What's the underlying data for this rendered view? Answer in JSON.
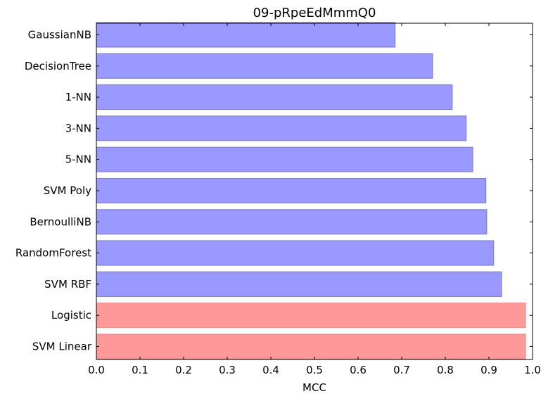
{
  "chart_data": {
    "type": "bar",
    "orientation": "horizontal",
    "title": "09-pRpeEdMmmQ0",
    "xlabel": "MCC",
    "ylabel": "",
    "xlim": [
      0.0,
      1.0
    ],
    "xticks": [
      "0.0",
      "0.1",
      "0.2",
      "0.3",
      "0.4",
      "0.5",
      "0.6",
      "0.7",
      "0.8",
      "0.9",
      "1.0"
    ],
    "categories": [
      "GaussianNB",
      "DecisionTree",
      "1-NN",
      "3-NN",
      "5-NN",
      "SVM Poly",
      "BernoulliNB",
      "RandomForest",
      "SVM RBF",
      "Logistic",
      "SVM Linear"
    ],
    "values": [
      0.685,
      0.771,
      0.816,
      0.848,
      0.863,
      0.893,
      0.895,
      0.911,
      0.929,
      0.984,
      0.984
    ],
    "highlighted": [
      false,
      false,
      false,
      false,
      false,
      false,
      false,
      false,
      false,
      true,
      true
    ],
    "grid": false,
    "colors": {
      "default_fill": "#9999ff",
      "default_stroke": "#7777bb",
      "highlight_fill": "#ff9999",
      "highlight_stroke": "#ee8888"
    }
  }
}
